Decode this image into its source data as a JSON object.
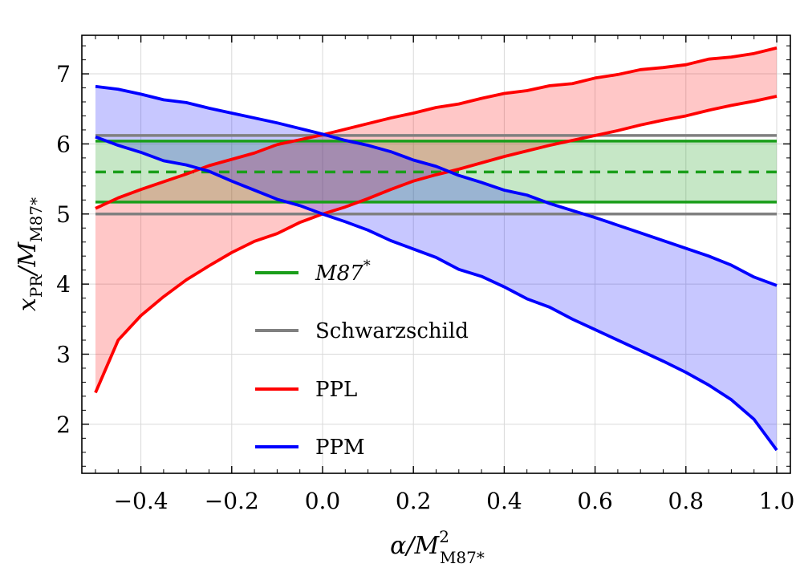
{
  "chart_data": {
    "type": "line",
    "xlabel": {
      "main": "α/M",
      "sup": "2",
      "sub": "M87*"
    },
    "ylabel": {
      "main": "x",
      "sub1": "PR",
      "mid": "/M",
      "sub2": "M87*"
    },
    "xlim": [
      -0.53,
      1.03
    ],
    "ylim": [
      1.3,
      7.55
    ],
    "x_ticks": [
      -0.4,
      -0.2,
      0.0,
      0.2,
      0.4,
      0.6,
      0.8,
      1.0
    ],
    "x_tick_labels": [
      "−0.4",
      "−0.2",
      "0.0",
      "0.2",
      "0.4",
      "0.6",
      "0.8",
      "1.0"
    ],
    "y_ticks": [
      2,
      3,
      4,
      5,
      6,
      7
    ],
    "y_tick_labels": [
      "2",
      "3",
      "4",
      "5",
      "6",
      "7"
    ],
    "grid": true,
    "legend_position": "center-left",
    "legend": [
      {
        "label_main": "M87",
        "label_sup": "*",
        "italic": true,
        "color": "#1a9e1a"
      },
      {
        "label_main": "Schwarzschild",
        "label_sup": "",
        "italic": false,
        "color": "#808080"
      },
      {
        "label_main": "PPL",
        "label_sup": "",
        "italic": false,
        "color": "#ff0000"
      },
      {
        "label_main": "PPM",
        "label_sup": "",
        "italic": false,
        "color": "#0000ff"
      }
    ],
    "bands": [
      {
        "name": "M87*",
        "color": "#1a9e1a",
        "lower": 5.17,
        "upper": 6.04,
        "center": 5.6
      },
      {
        "name": "Schwarzschild",
        "color": "#808080",
        "lower": 5.0,
        "upper": 6.12
      }
    ],
    "series": [
      {
        "name": "PPL",
        "color": "#ff0000",
        "x": [
          -0.5,
          -0.45,
          -0.4,
          -0.35,
          -0.3,
          -0.25,
          -0.2,
          -0.15,
          -0.1,
          -0.05,
          0.0,
          0.05,
          0.1,
          0.15,
          0.2,
          0.25,
          0.3,
          0.35,
          0.4,
          0.45,
          0.5,
          0.55,
          0.6,
          0.65,
          0.7,
          0.75,
          0.8,
          0.85,
          0.9,
          0.95,
          1.0
        ],
        "upper": [
          5.08,
          5.23,
          5.35,
          5.46,
          5.57,
          5.69,
          5.78,
          5.87,
          5.99,
          6.06,
          6.13,
          6.21,
          6.29,
          6.37,
          6.44,
          6.52,
          6.57,
          6.65,
          6.72,
          6.76,
          6.83,
          6.86,
          6.94,
          6.99,
          7.06,
          7.09,
          7.13,
          7.21,
          7.24,
          7.29,
          7.37
        ],
        "lower": [
          2.45,
          3.2,
          3.55,
          3.82,
          4.06,
          4.26,
          4.45,
          4.61,
          4.72,
          4.88,
          5.0,
          5.1,
          5.22,
          5.35,
          5.47,
          5.56,
          5.64,
          5.73,
          5.82,
          5.9,
          5.98,
          6.05,
          6.12,
          6.19,
          6.27,
          6.34,
          6.4,
          6.48,
          6.55,
          6.61,
          6.68
        ]
      },
      {
        "name": "PPM",
        "color": "#0000ff",
        "x": [
          -0.5,
          -0.45,
          -0.4,
          -0.35,
          -0.3,
          -0.25,
          -0.2,
          -0.15,
          -0.1,
          -0.05,
          0.0,
          0.05,
          0.1,
          0.15,
          0.2,
          0.25,
          0.3,
          0.35,
          0.4,
          0.45,
          0.5,
          0.55,
          0.6,
          0.65,
          0.7,
          0.75,
          0.8,
          0.85,
          0.9,
          0.95,
          1.0
        ],
        "upper": [
          6.82,
          6.78,
          6.71,
          6.63,
          6.59,
          6.51,
          6.44,
          6.37,
          6.3,
          6.22,
          6.14,
          6.05,
          5.98,
          5.89,
          5.77,
          5.68,
          5.55,
          5.45,
          5.34,
          5.27,
          5.15,
          5.05,
          4.95,
          4.84,
          4.73,
          4.62,
          4.51,
          4.4,
          4.27,
          4.1,
          3.98
        ],
        "lower": [
          6.1,
          5.98,
          5.88,
          5.76,
          5.7,
          5.61,
          5.47,
          5.34,
          5.21,
          5.12,
          5.0,
          4.89,
          4.77,
          4.62,
          4.5,
          4.38,
          4.21,
          4.11,
          3.96,
          3.79,
          3.67,
          3.5,
          3.35,
          3.2,
          3.05,
          2.9,
          2.74,
          2.56,
          2.35,
          2.07,
          1.63
        ]
      }
    ]
  }
}
